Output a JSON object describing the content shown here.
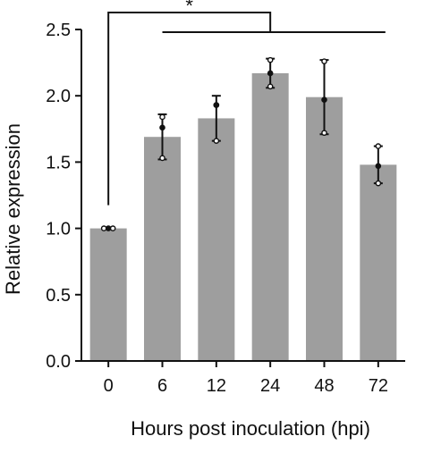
{
  "chart_data": {
    "type": "bar",
    "xlabel": "Hours post inoculation (hpi)",
    "ylabel": "Relative expression",
    "categories": [
      "0",
      "6",
      "12",
      "24",
      "48",
      "72"
    ],
    "values": [
      1.0,
      1.69,
      1.83,
      2.17,
      1.99,
      1.48
    ],
    "error_upper": [
      1.0,
      1.86,
      2.0,
      2.28,
      2.27,
      1.62
    ],
    "error_lower": [
      1.0,
      1.52,
      1.66,
      2.06,
      1.71,
      1.34
    ],
    "replicates": [
      [
        1.0,
        1.0,
        1.0
      ],
      [
        1.84,
        1.76,
        1.53
      ],
      [
        1.93,
        1.93,
        1.66
      ],
      [
        2.27,
        2.17,
        2.07
      ],
      [
        2.26,
        1.97,
        1.72
      ],
      [
        1.62,
        1.47,
        1.34
      ]
    ],
    "yticks": [
      "0.0",
      "0.5",
      "1.0",
      "1.5",
      "2.0",
      "2.5"
    ],
    "ylim": [
      0,
      2.5
    ],
    "bar_color": "#9e9e9e",
    "significance": {
      "label": "*",
      "reference": "0",
      "compared": [
        "6",
        "12",
        "24",
        "48",
        "72"
      ]
    }
  }
}
